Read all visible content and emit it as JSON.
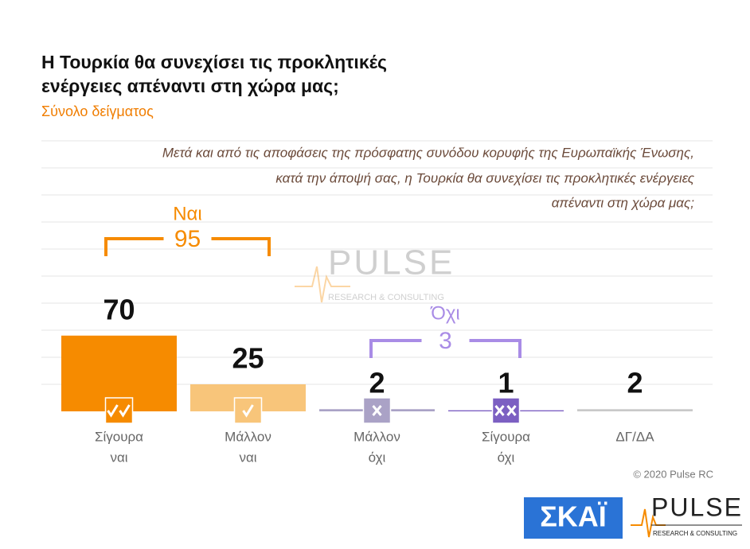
{
  "chart_data": {
    "type": "bar",
    "title": [
      "Η Τουρκία θα συνεχίσει τις προκλητικές",
      "ενέργειες απέναντι στη χώρα μας;"
    ],
    "subtitle": "Σύνολο δείγματος",
    "question": [
      "Μετά και από τις αποφάσεις της πρόσφατης συνόδου κορυφής της Ευρωπαϊκής Ένωσης,",
      "κατά την άποψή σας, η Τουρκία θα συνεχίσει τις προκλητικές ενέργειες",
      "απέναντι στη χώρα μας;"
    ],
    "categories": [
      [
        "Σίγουρα",
        "ναι"
      ],
      [
        "Μάλλον",
        "ναι"
      ],
      [
        "Μάλλον",
        "όχι"
      ],
      [
        "Σίγουρα",
        "όχι"
      ],
      [
        "ΔΓ/ΔΑ"
      ]
    ],
    "values": [
      70,
      25,
      2,
      1,
      2
    ],
    "colors": [
      "#f68b00",
      "#f8c57a",
      "#aaa2c6",
      "#7c5fc2",
      "#c9c9c9"
    ],
    "groups": [
      {
        "label": "Ναι",
        "value": 95,
        "color": "#f68b00"
      },
      {
        "label": "Όχι",
        "value": 3,
        "color": "#a98ce6"
      }
    ],
    "copyright": "© 2020 Pulse RC",
    "logos": {
      "skai": "ΣΚΑΪ",
      "pulse": "PULSE",
      "pulse_sub": "RESEARCH & CONSULTING"
    }
  }
}
